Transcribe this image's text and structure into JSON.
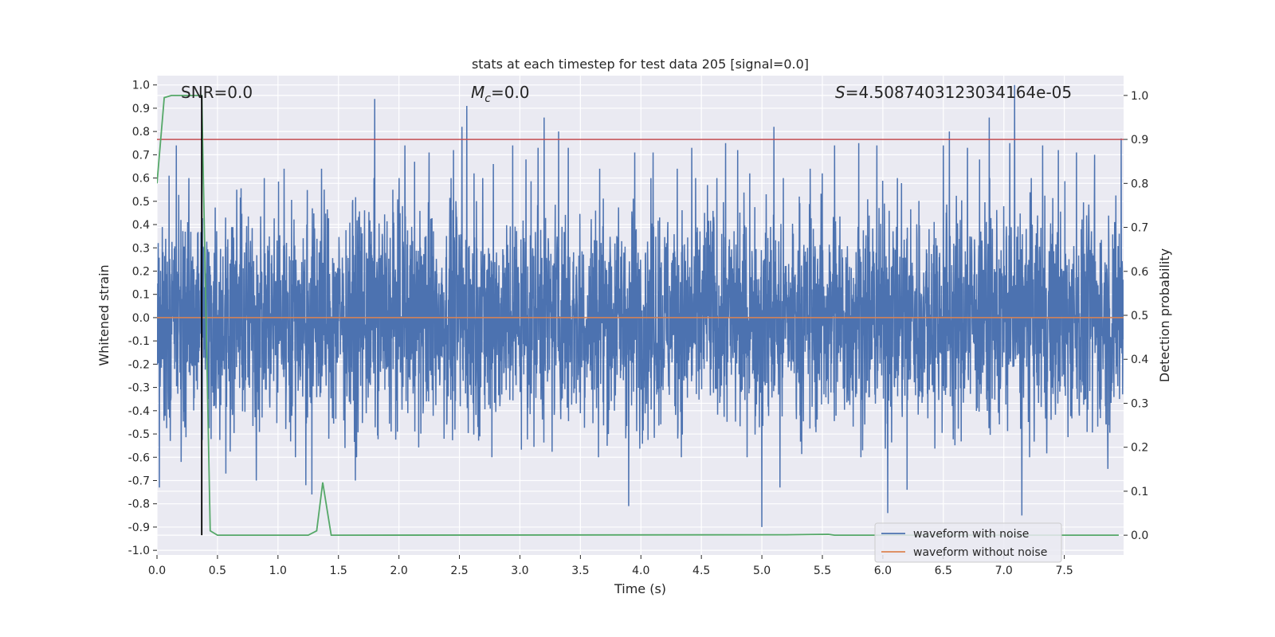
{
  "chart_data": {
    "type": "line",
    "title": "stats at each timestep for test data 205 [signal=0.0]",
    "xlabel": "Time (s)",
    "ylabel": "Whitened strain",
    "y2label": "Detection probability",
    "xlim": [
      0.0,
      7.99
    ],
    "ylim": [
      -1.02,
      1.04
    ],
    "y2lim": [
      -0.045,
      1.045
    ],
    "xticks": [
      "0.0",
      "0.5",
      "1.0",
      "1.5",
      "2.0",
      "2.5",
      "3.0",
      "3.5",
      "4.0",
      "4.5",
      "5.0",
      "5.5",
      "6.0",
      "6.5",
      "7.0",
      "7.5"
    ],
    "yticks": [
      "1.0",
      "0.9",
      "0.8",
      "0.7",
      "0.6",
      "0.5",
      "0.4",
      "0.3",
      "0.2",
      "0.1",
      "0.0",
      "-0.1",
      "-0.2",
      "-0.3",
      "-0.4",
      "-0.5",
      "-0.6",
      "-0.7",
      "-0.8",
      "-0.9",
      "-1.0"
    ],
    "y2ticks": [
      "1.0",
      "0.9",
      "0.8",
      "0.7",
      "0.6",
      "0.5",
      "0.4",
      "0.3",
      "0.2",
      "0.1",
      "0.0"
    ],
    "annotations": {
      "snr": "SNR=0.0",
      "mc_symbol": "M",
      "mc_sub": "c",
      "mc_value": "=0.0",
      "s_symbol": "S",
      "s_value": "=4.5087403123034164e-05"
    },
    "threshold": 0.9,
    "marker_x": 0.37,
    "series": [
      {
        "name": "waveform with noise",
        "color": "#4c72b0",
        "axis": "left",
        "kind": "noise",
        "envelope": 0.42,
        "peaks": [
          [
            0.02,
            -0.73
          ],
          [
            0.1,
            0.61
          ],
          [
            0.11,
            -0.53
          ],
          [
            0.16,
            0.74
          ],
          [
            0.2,
            -0.62
          ],
          [
            0.47,
            -0.38
          ],
          [
            0.57,
            -0.67
          ],
          [
            0.66,
            0.55
          ],
          [
            0.82,
            -0.7
          ],
          [
            1.05,
            0.64
          ],
          [
            1.23,
            -0.72
          ],
          [
            1.28,
            -0.76
          ],
          [
            1.36,
            0.64
          ],
          [
            1.55,
            -0.03
          ],
          [
            1.64,
            -0.7
          ],
          [
            1.8,
            0.94
          ],
          [
            1.95,
            0.55
          ],
          [
            2.05,
            0.74
          ],
          [
            2.13,
            0.67
          ],
          [
            2.25,
            0.71
          ],
          [
            2.45,
            0.72
          ],
          [
            2.52,
            0.82
          ],
          [
            2.56,
            0.91
          ],
          [
            2.62,
            0.62
          ],
          [
            2.78,
            0.66
          ],
          [
            2.94,
            0.74
          ],
          [
            3.05,
            0.68
          ],
          [
            3.15,
            0.73
          ],
          [
            3.2,
            0.86
          ],
          [
            3.32,
            0.8
          ],
          [
            3.4,
            0.73
          ],
          [
            3.66,
            0.64
          ],
          [
            3.9,
            -0.81
          ],
          [
            3.95,
            0.71
          ],
          [
            4.1,
            0.71
          ],
          [
            4.3,
            0.64
          ],
          [
            4.42,
            0.73
          ],
          [
            4.55,
            0.57
          ],
          [
            4.7,
            0.75
          ],
          [
            4.8,
            0.72
          ],
          [
            4.9,
            0.62
          ],
          [
            5.0,
            -0.9
          ],
          [
            5.1,
            0.82
          ],
          [
            5.15,
            -0.73
          ],
          [
            5.4,
            0.64
          ],
          [
            5.5,
            0.62
          ],
          [
            5.6,
            0.74
          ],
          [
            5.8,
            0.75
          ],
          [
            5.95,
            0.74
          ],
          [
            6.04,
            -0.84
          ],
          [
            6.2,
            -0.74
          ],
          [
            6.5,
            0.74
          ],
          [
            6.55,
            0.8
          ],
          [
            6.7,
            0.73
          ],
          [
            6.8,
            0.68
          ],
          [
            6.88,
            0.86
          ],
          [
            7.05,
            0.75
          ],
          [
            7.09,
            1.0
          ],
          [
            7.15,
            -0.85
          ],
          [
            7.32,
            0.74
          ],
          [
            7.45,
            0.72
          ],
          [
            7.6,
            0.71
          ],
          [
            7.75,
            0.7
          ],
          [
            7.86,
            -0.65
          ],
          [
            7.97,
            0.77
          ]
        ]
      },
      {
        "name": "waveform without noise",
        "color": "#dd8452",
        "axis": "left",
        "kind": "flat",
        "value": 0.0
      },
      {
        "name": "detection probability",
        "color": "#55a868",
        "axis": "right",
        "kind": "line",
        "x": [
          0.0,
          0.06,
          0.12,
          0.37,
          0.44,
          0.5,
          1.0,
          1.25,
          1.32,
          1.37,
          1.44,
          1.5,
          5.2,
          5.55,
          5.6,
          7.95
        ],
        "y": [
          0.8,
          0.995,
          1.0,
          1.0,
          0.01,
          0.0,
          0.0,
          0.0,
          0.01,
          0.12,
          0.0,
          0.0,
          0.001,
          0.002,
          0.0,
          0.0
        ]
      }
    ],
    "legend": {
      "placement": "lower-right",
      "entries": [
        {
          "label": "waveform with noise",
          "color": "#4c72b0"
        },
        {
          "label": "waveform without noise",
          "color": "#dd8452"
        }
      ]
    },
    "colors": {
      "background": "#eaeaf2",
      "grid": "#ffffff",
      "threshold": "#c44e52",
      "marker": "#000000",
      "text": "#262626"
    }
  }
}
